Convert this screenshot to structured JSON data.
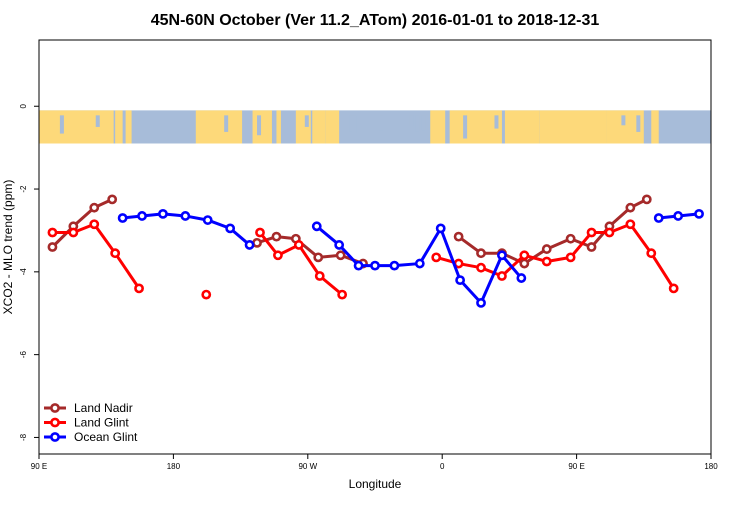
{
  "chart_data": {
    "type": "line",
    "title": "45N-60N October (Ver 11.2_ATom)   2016-01-01 to 2018-12-31",
    "xlabel": "Longitude",
    "ylabel": "XCO2 - MLO trend (ppm)",
    "xlim": [
      90,
      540
    ],
    "ylim": [
      -8.4,
      1.6
    ],
    "x_ticks": [
      {
        "value": 90,
        "label": "90 E"
      },
      {
        "value": 180,
        "label": "180"
      },
      {
        "value": 270,
        "label": "90 W"
      },
      {
        "value": 360,
        "label": "0"
      },
      {
        "value": 450,
        "label": "90 E"
      },
      {
        "value": 540,
        "label": "180"
      }
    ],
    "y_ticks": [
      {
        "value": 0,
        "label": "0"
      },
      {
        "value": -2,
        "label": "-2"
      },
      {
        "value": -4,
        "label": "-4"
      },
      {
        "value": -6,
        "label": "-6"
      },
      {
        "value": -8,
        "label": "-8"
      }
    ],
    "map_strip": {
      "y_top": -0.1,
      "y_bottom": -0.9,
      "ocean_color": "#a7bcd9",
      "land_color": "#fdd97a"
    },
    "legend": {
      "position": "bottom-left"
    },
    "grid": false,
    "series": [
      {
        "name": "Land Nadir",
        "color": "#a52a2a",
        "segments": [
          [
            [
              99,
              -3.4
            ],
            [
              113,
              -2.9
            ],
            [
              127,
              -2.45
            ],
            [
              139,
              -2.25
            ]
          ],
          [
            [
              236,
              -3.3
            ],
            [
              249,
              -3.15
            ],
            [
              262,
              -3.2
            ],
            [
              277,
              -3.65
            ],
            [
              292,
              -3.6
            ],
            [
              307,
              -3.8
            ]
          ],
          [
            [
              371,
              -3.15
            ],
            [
              386,
              -3.55
            ],
            [
              400,
              -3.55
            ],
            [
              415,
              -3.8
            ],
            [
              430,
              -3.45
            ],
            [
              446,
              -3.2
            ],
            [
              460,
              -3.4
            ],
            [
              472,
              -2.9
            ],
            [
              486,
              -2.45
            ],
            [
              497,
              -2.25
            ]
          ]
        ]
      },
      {
        "name": "Land Glint",
        "color": "#ff0000",
        "segments": [
          [
            [
              99,
              -3.05
            ],
            [
              113,
              -3.05
            ],
            [
              127,
              -2.85
            ],
            [
              141,
              -3.55
            ],
            [
              157,
              -4.4
            ]
          ],
          [
            [
              202,
              -4.55
            ]
          ],
          [
            [
              238,
              -3.05
            ],
            [
              250,
              -3.6
            ],
            [
              264,
              -3.35
            ],
            [
              278,
              -4.1
            ],
            [
              293,
              -4.55
            ]
          ],
          [
            [
              356,
              -3.65
            ],
            [
              371,
              -3.8
            ],
            [
              386,
              -3.9
            ],
            [
              400,
              -4.1
            ],
            [
              415,
              -3.6
            ],
            [
              430,
              -3.75
            ],
            [
              446,
              -3.65
            ],
            [
              460,
              -3.05
            ],
            [
              472,
              -3.05
            ],
            [
              486,
              -2.85
            ],
            [
              500,
              -3.55
            ],
            [
              515,
              -4.4
            ]
          ]
        ]
      },
      {
        "name": "Ocean Glint",
        "color": "#0000ff",
        "segments": [
          [
            [
              146,
              -2.7
            ],
            [
              159,
              -2.65
            ],
            [
              173,
              -2.6
            ],
            [
              188,
              -2.65
            ],
            [
              203,
              -2.75
            ],
            [
              218,
              -2.95
            ],
            [
              231,
              -3.35
            ]
          ],
          [
            [
              276,
              -2.9
            ],
            [
              291,
              -3.35
            ],
            [
              304,
              -3.85
            ],
            [
              315,
              -3.85
            ],
            [
              328,
              -3.85
            ],
            [
              345,
              -3.8
            ],
            [
              359,
              -2.95
            ],
            [
              372,
              -4.2
            ],
            [
              386,
              -4.75
            ],
            [
              400,
              -3.6
            ],
            [
              413,
              -4.15
            ]
          ],
          [
            [
              505,
              -2.7
            ],
            [
              518,
              -2.65
            ],
            [
              532,
              -2.6
            ]
          ]
        ]
      }
    ]
  }
}
